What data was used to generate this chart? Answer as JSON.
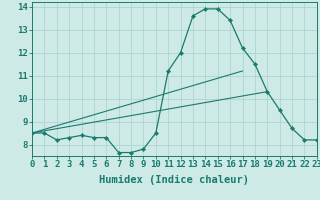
{
  "hours": [
    0,
    1,
    2,
    3,
    4,
    5,
    6,
    7,
    8,
    9,
    10,
    11,
    12,
    13,
    14,
    15,
    16,
    17,
    18,
    19,
    20,
    21,
    22,
    23
  ],
  "series_main": [
    8.5,
    8.5,
    8.2,
    8.3,
    8.4,
    8.3,
    8.3,
    7.65,
    7.65,
    7.8,
    8.5,
    11.2,
    12.0,
    13.6,
    13.9,
    13.9,
    13.4,
    12.2,
    11.5,
    10.3,
    9.5,
    8.7,
    8.2,
    8.2
  ],
  "line1_x": [
    0,
    17
  ],
  "line1_y": [
    8.5,
    11.2
  ],
  "line2_x": [
    0,
    19
  ],
  "line2_y": [
    8.5,
    10.3
  ],
  "color": "#1a7a6e",
  "bg_color": "#ceeae6",
  "grid_color": "#aed4d0",
  "ylabel_vals": [
    8,
    9,
    10,
    11,
    12,
    13,
    14
  ],
  "xlabel": "Humidex (Indice chaleur)",
  "xlim": [
    0,
    23
  ],
  "ylim": [
    7.5,
    14.2
  ],
  "tick_fontsize": 6.5,
  "label_fontsize": 7.5
}
